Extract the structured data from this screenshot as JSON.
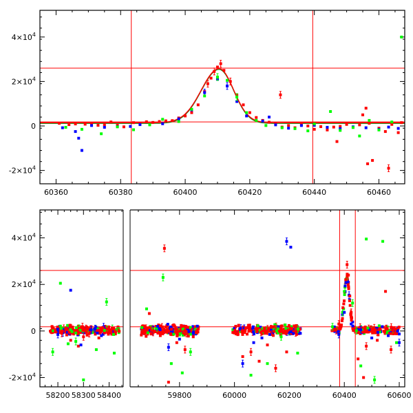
{
  "chart_data": [
    {
      "type": "scatter",
      "panel": "top",
      "xlim": [
        60355,
        60468
      ],
      "ylim": [
        -26000,
        52000
      ],
      "xticks": [
        60360,
        60380,
        60400,
        60420,
        60440,
        60460
      ],
      "yticks": [
        {
          "value": -20000,
          "mant": "-2×10",
          "exp": "4"
        },
        {
          "value": 0,
          "mant": "0",
          "exp": ""
        },
        {
          "value": 20000,
          "mant": "2×10",
          "exp": "4"
        },
        {
          "value": 40000,
          "mant": "4×10",
          "exp": "4"
        }
      ],
      "vlines": [
        60383.3,
        60439.5
      ],
      "hlines": [
        1800,
        26000
      ],
      "colors": {
        "red": "#ff0000",
        "blue": "#0000ff",
        "green": "#00ff00",
        "model": "#ff0000",
        "model_outer": "#008000",
        "lines": "#ff0000"
      },
      "model": {
        "t0": 60410.5,
        "peak": 25800,
        "base": 1500,
        "rise": 5.5,
        "fall": 4.5
      },
      "series": [
        {
          "color": "red",
          "points": [
            [
              60361,
              1200
            ],
            [
              60364,
              600
            ],
            [
              60366,
              900
            ],
            [
              60369,
              800
            ],
            [
              60371,
              1100
            ],
            [
              60373,
              300
            ],
            [
              60375,
              500
            ],
            [
              60377,
              1800
            ],
            [
              60379,
              300
            ],
            [
              60381,
              -400
            ],
            [
              60384,
              1500
            ],
            [
              60386,
              1200
            ],
            [
              60388,
              1900
            ],
            [
              60390,
              1600
            ],
            [
              60392,
              2000
            ],
            [
              60394,
              2300
            ],
            [
              60396,
              2400
            ],
            [
              60398,
              3600
            ],
            [
              60400,
              4500
            ],
            [
              60402,
              6000
            ],
            [
              60404,
              9500
            ],
            [
              60406,
              15500
            ],
            [
              60407,
              19000
            ],
            [
              60408,
              21500
            ],
            [
              60409,
              24500
            ],
            [
              60410,
              26500
            ],
            [
              60411,
              28000
            ],
            [
              60412,
              25000
            ],
            [
              60414,
              20000
            ],
            [
              60416,
              14000
            ],
            [
              60418,
              9500
            ],
            [
              60420,
              6000
            ],
            [
              60422,
              3800
            ],
            [
              60424,
              2500
            ],
            [
              60426,
              1700
            ],
            [
              60428,
              1200
            ],
            [
              60429.5,
              14000
            ],
            [
              60430,
              -500
            ],
            [
              60432,
              200
            ],
            [
              60434,
              -800
            ],
            [
              60436,
              600
            ],
            [
              60438,
              0
            ],
            [
              60440,
              -1500
            ],
            [
              60442,
              -300
            ],
            [
              60444,
              -1800
            ],
            [
              60446,
              -500
            ],
            [
              60447,
              -7000
            ],
            [
              60448,
              -200
            ],
            [
              60450,
              700
            ],
            [
              60452,
              -600
            ],
            [
              60454,
              500
            ],
            [
              60455,
              5000
            ],
            [
              60456,
              8000
            ],
            [
              60456.5,
              -17000
            ],
            [
              60457,
              1200
            ],
            [
              60458,
              -15500
            ],
            [
              60460,
              -1000
            ],
            [
              60462,
              -2500
            ],
            [
              60463,
              -19000
            ],
            [
              60464,
              700
            ],
            [
              60466,
              -3000
            ],
            [
              60467,
              1500
            ]
          ]
        },
        {
          "color": "blue",
          "points": [
            [
              60362,
              -800
            ],
            [
              60366,
              -2500
            ],
            [
              60367,
              -5500
            ],
            [
              60368,
              -11000
            ],
            [
              60371,
              200
            ],
            [
              60375,
              -600
            ],
            [
              60379,
              -300
            ],
            [
              60383,
              -200
            ],
            [
              60386,
              600
            ],
            [
              60393,
              1000
            ],
            [
              60398,
              3200
            ],
            [
              60402,
              7200
            ],
            [
              60406,
              15000
            ],
            [
              60410,
              21000
            ],
            [
              60413,
              18000
            ],
            [
              60416,
              11000
            ],
            [
              60419,
              4500
            ],
            [
              60424,
              2200
            ],
            [
              60426,
              4000
            ],
            [
              60428,
              500
            ],
            [
              60432,
              -1000
            ],
            [
              60436,
              200
            ],
            [
              60440,
              300
            ],
            [
              60444,
              -600
            ],
            [
              60448,
              -1200
            ],
            [
              60452,
              -400
            ],
            [
              60456,
              -800
            ],
            [
              60460,
              -1500
            ],
            [
              60463,
              -500
            ],
            [
              60466,
              -1100
            ]
          ]
        },
        {
          "color": "green",
          "points": [
            [
              60363,
              -600
            ],
            [
              60368,
              -1500
            ],
            [
              60374,
              -3500
            ],
            [
              60379,
              -400
            ],
            [
              60384,
              -1700
            ],
            [
              60389,
              500
            ],
            [
              60393,
              3000
            ],
            [
              60398,
              2000
            ],
            [
              60402,
              7500
            ],
            [
              60406,
              13500
            ],
            [
              60410,
              22000
            ],
            [
              60413,
              20500
            ],
            [
              60416,
              13000
            ],
            [
              60419,
              6000
            ],
            [
              60422,
              2500
            ],
            [
              60425,
              200
            ],
            [
              60430,
              -800
            ],
            [
              60434,
              -1200
            ],
            [
              60438,
              -2200
            ],
            [
              60440,
              900
            ],
            [
              60445,
              6500
            ],
            [
              60448,
              -2000
            ],
            [
              60452,
              -700
            ],
            [
              60454,
              -4500
            ],
            [
              60457,
              2500
            ],
            [
              60460,
              -1800
            ],
            [
              60464,
              1800
            ],
            [
              60467,
              40000
            ]
          ]
        }
      ]
    },
    {
      "type": "scatter",
      "panel": "bottom",
      "x_segments": [
        {
          "xlim": [
            58130,
            58455
          ],
          "xticks": [
            58200,
            58300,
            58400
          ]
        },
        {
          "xlim": [
            59620,
            60620
          ],
          "xticks": [
            59800,
            60000,
            60200,
            60400,
            60600
          ]
        }
      ],
      "ylim": [
        -24000,
        52000
      ],
      "yticks": [
        {
          "value": -20000,
          "mant": "-2×10",
          "exp": "4"
        },
        {
          "value": 0,
          "mant": "0",
          "exp": ""
        },
        {
          "value": 20000,
          "mant": "2×10",
          "exp": "4"
        },
        {
          "value": 40000,
          "mant": "4×10",
          "exp": "4"
        }
      ],
      "vlines": [
        60383,
        60440
      ],
      "hlines": [
        1800,
        26000
      ],
      "colors": {
        "red": "#ff0000",
        "blue": "#0000ff",
        "green": "#00ff00",
        "lines": "#ff0000"
      },
      "clusters": [
        {
          "x0": 58170,
          "x1": 58440,
          "spread": 2500
        },
        {
          "x0": 59660,
          "x1": 59870,
          "spread": 3000
        },
        {
          "x0": 59990,
          "x1": 60240,
          "spread": 3000
        },
        {
          "x0": 60355,
          "x1": 60600,
          "spread": 2200
        }
      ],
      "series": [
        {
          "color": "red",
          "points": [
            [
              58215,
              -1000
            ],
            [
              58250,
              -4000
            ],
            [
              58280,
              -6500
            ],
            [
              58300,
              -2500
            ],
            [
              58330,
              1500
            ],
            [
              58360,
              -3000
            ],
            [
              58400,
              500
            ],
            [
              59690,
              7500
            ],
            [
              59730,
              -2000
            ],
            [
              59745,
              35500
            ],
            [
              59760,
              -22000
            ],
            [
              59790,
              -5000
            ],
            [
              59820,
              -8000
            ],
            [
              59850,
              -2500
            ],
            [
              60030,
              -11000
            ],
            [
              60060,
              -9000
            ],
            [
              60090,
              -13000
            ],
            [
              60120,
              -6000
            ],
            [
              60150,
              -16000
            ],
            [
              60190,
              -9000
            ],
            [
              60210,
              1000
            ],
            [
              60380,
              3000
            ],
            [
              60395,
              10000
            ],
            [
              60405,
              22000
            ],
            [
              60410,
              28500
            ],
            [
              60415,
              24000
            ],
            [
              60420,
              15000
            ],
            [
              60425,
              8000
            ],
            [
              60450,
              -12000
            ],
            [
              60470,
              -20000
            ],
            [
              60480,
              -6500
            ],
            [
              60520,
              -4000
            ],
            [
              60550,
              17000
            ],
            [
              60570,
              -8000
            ],
            [
              60590,
              -1200
            ]
          ]
        },
        {
          "color": "blue",
          "points": [
            [
              58200,
              -1500
            ],
            [
              58250,
              17500
            ],
            [
              58290,
              -6000
            ],
            [
              58330,
              500
            ],
            [
              58370,
              -2000
            ],
            [
              59720,
              2000
            ],
            [
              59760,
              -7000
            ],
            [
              59800,
              -3500
            ],
            [
              59850,
              -1000
            ],
            [
              60030,
              -14000
            ],
            [
              60070,
              -5000
            ],
            [
              60100,
              -3000
            ],
            [
              60190,
              38500
            ],
            [
              60205,
              36000
            ],
            [
              60240,
              -1000
            ],
            [
              60380,
              -1500
            ],
            [
              60400,
              8000
            ],
            [
              60425,
              3000
            ],
            [
              60460,
              500
            ],
            [
              60500,
              -3000
            ],
            [
              60560,
              -2000
            ],
            [
              60600,
              -5000
            ]
          ]
        },
        {
          "color": "green",
          "points": [
            [
              58180,
              -9000
            ],
            [
              58210,
              20500
            ],
            [
              58240,
              -5500
            ],
            [
              58270,
              -4500
            ],
            [
              58300,
              -21000
            ],
            [
              58350,
              -8000
            ],
            [
              58390,
              12500
            ],
            [
              58420,
              -9500
            ],
            [
              59680,
              9500
            ],
            [
              59740,
              23000
            ],
            [
              59770,
              -14000
            ],
            [
              59810,
              -18000
            ],
            [
              59840,
              -9000
            ],
            [
              60060,
              -19000
            ],
            [
              60120,
              -14000
            ],
            [
              60170,
              -2500
            ],
            [
              60230,
              -9500
            ],
            [
              60400,
              17000
            ],
            [
              60430,
              12000
            ],
            [
              60460,
              -15000
            ],
            [
              60480,
              39500
            ],
            [
              60510,
              -21000
            ],
            [
              60540,
              38500
            ],
            [
              60590,
              -5000
            ]
          ]
        }
      ]
    }
  ]
}
